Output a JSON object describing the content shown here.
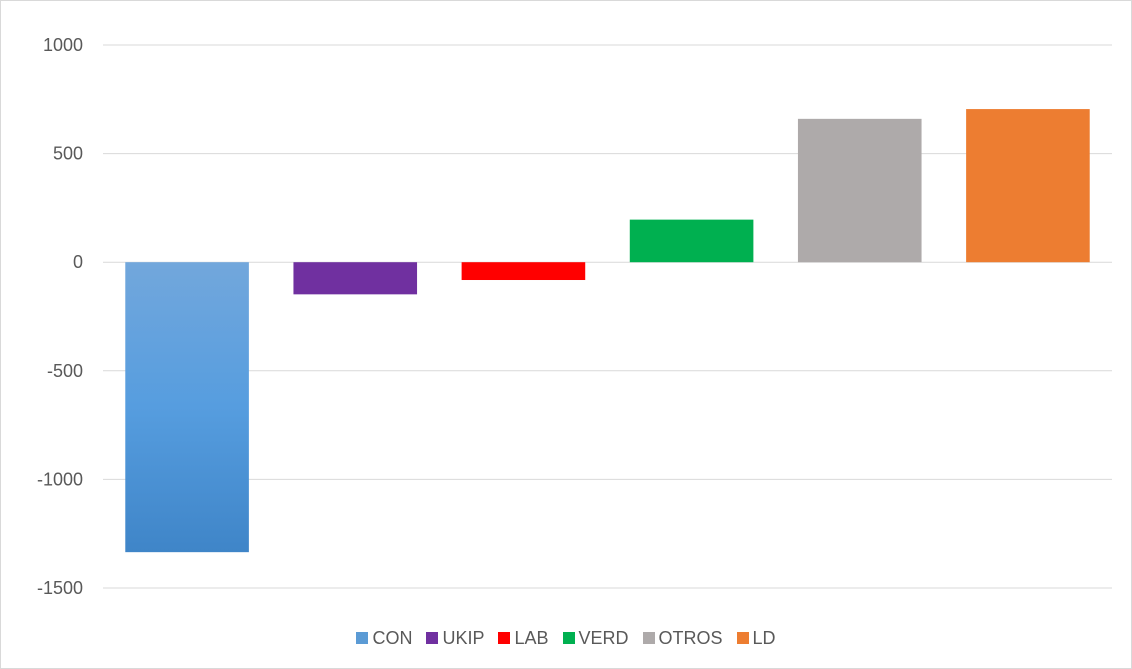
{
  "chart_data": {
    "type": "bar",
    "title": "",
    "xlabel": "",
    "ylabel": "",
    "ylim": [
      -1500,
      1000
    ],
    "yticks": [
      1000,
      500,
      0,
      -500,
      -1000,
      -1500
    ],
    "grid": true,
    "legend_position": "bottom",
    "series": [
      {
        "name": "CON",
        "value": -1335,
        "color": "#5b9bd5"
      },
      {
        "name": "UKIP",
        "value": -148,
        "color": "#7030a0"
      },
      {
        "name": "LAB",
        "value": -82,
        "color": "#ff0000"
      },
      {
        "name": "VERD",
        "value": 196,
        "color": "#00b050"
      },
      {
        "name": "OTROS",
        "value": 660,
        "color": "#aeaaaa"
      },
      {
        "name": "LD",
        "value": 705,
        "color": "#ed7d31"
      }
    ]
  }
}
